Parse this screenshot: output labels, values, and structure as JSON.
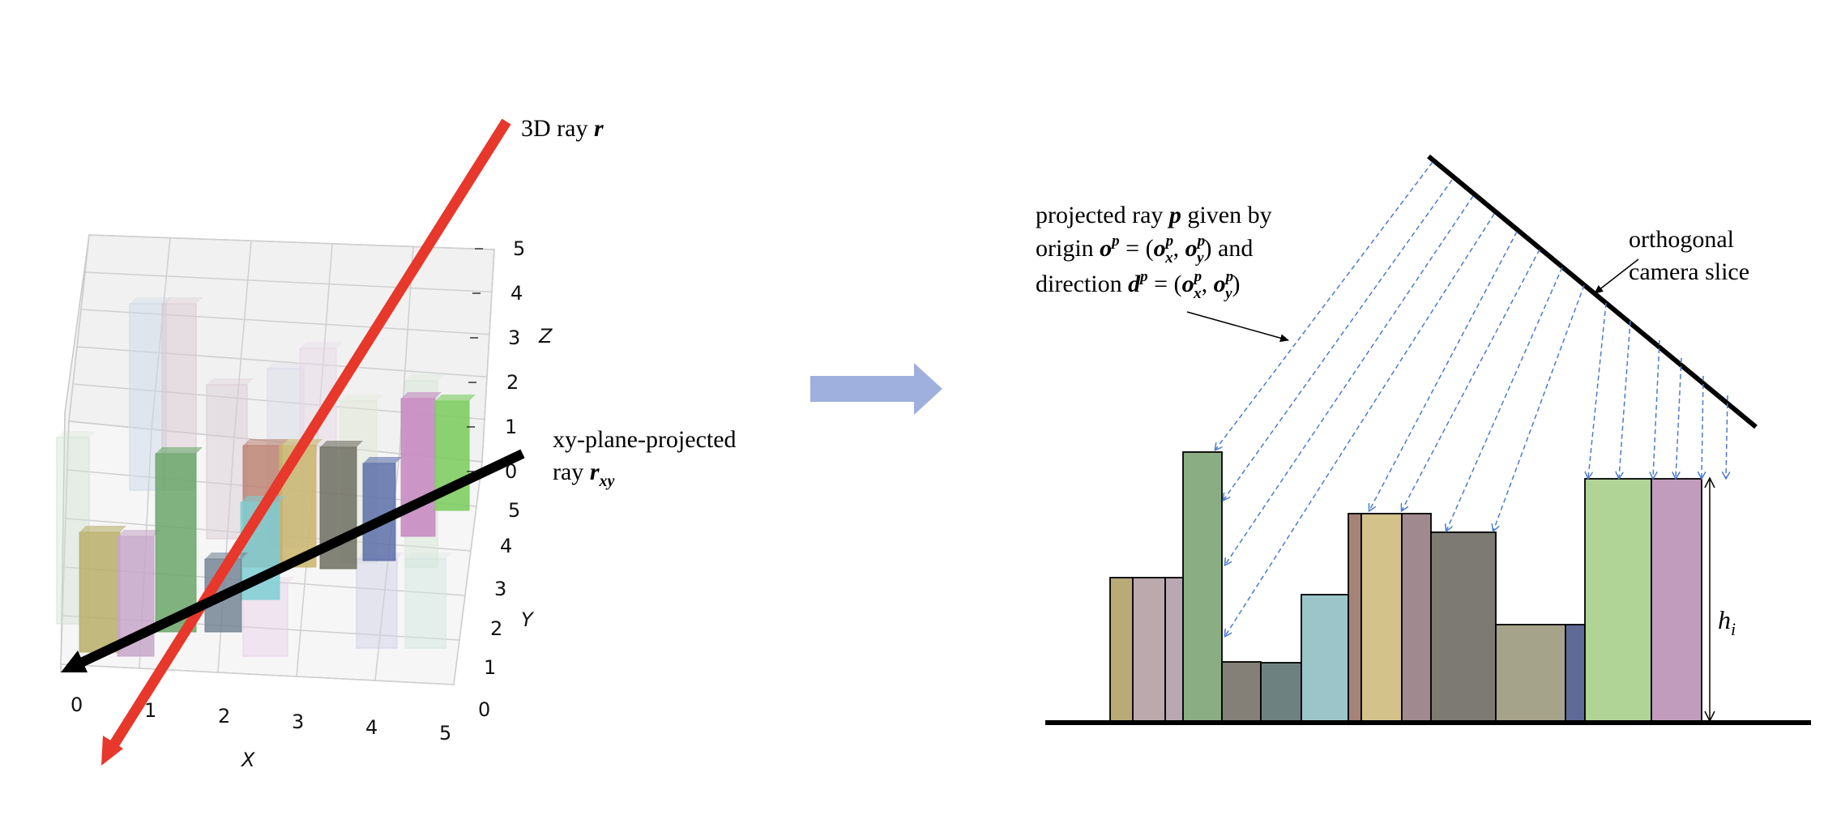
{
  "left_panel": {
    "ray3d_label_prefix": "3D ray ",
    "ray3d_symbol": "r",
    "proj_label_line1": "xy-plane-projected",
    "proj_label_line2_prefix": "ray ",
    "proj_symbol": "r",
    "proj_subscript": "xy",
    "axes": {
      "x_label": "X",
      "y_label": "Y",
      "z_label": "Z",
      "x_ticks": [
        "0",
        "1",
        "2",
        "3",
        "4",
        "5"
      ],
      "y_ticks": [
        "0",
        "1",
        "2",
        "3",
        "4",
        "5"
      ],
      "z_ticks": [
        "0",
        "1",
        "2",
        "3",
        "4",
        "5"
      ]
    },
    "colors": {
      "ray3d": "#e8372b",
      "projected": "#000000"
    }
  },
  "arrow": {
    "color": "#9fb0de"
  },
  "right_panel": {
    "projected_line1_a": "projected ray ",
    "projected_line1_sym": "p",
    "projected_line1_b": " given by",
    "projected_line2_a": "origin ",
    "projected_line2_math": "o",
    "projected_line2_b": " = (",
    "projected_line2_c": ") and",
    "projected_line3_a": "direction ",
    "projected_line3_math": "d",
    "camera_line1": "orthogonal",
    "camera_line2": "camera slice",
    "height_symbol": "h",
    "height_subscript": "i",
    "superscript_p": "p",
    "sub_x": "x",
    "sub_y": "y",
    "comma": ", ",
    "close_paren": ")",
    "ray_color": "#4a7bd0"
  }
}
